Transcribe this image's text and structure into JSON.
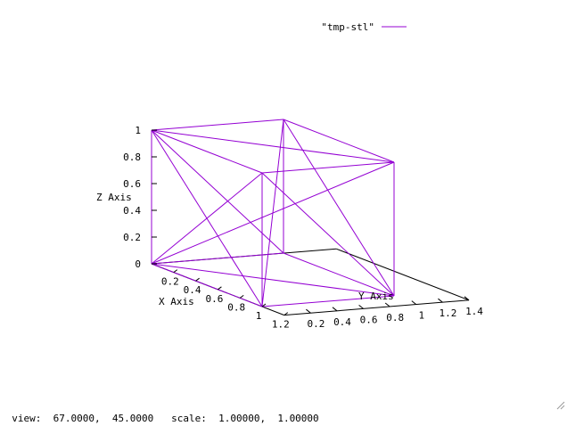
{
  "chart_data": {
    "type": "line",
    "style": "3d-wireframe",
    "view": {
      "rot_x": 67,
      "rot_z": 45,
      "scale": 1,
      "scale_z": 1
    },
    "xlabel": "X Axis",
    "ylabel": "Y Axis",
    "zlabel": "Z Axis",
    "xlim": [
      0,
      1.2
    ],
    "ylim": [
      0,
      1.4
    ],
    "zlim": [
      0,
      1
    ],
    "x_ticks": [
      "0.2",
      "0.4",
      "0.6",
      "0.8",
      "1",
      "1.2"
    ],
    "y_ticks": [
      "0.2",
      "0.4",
      "0.6",
      "0.8",
      "1",
      "1.2",
      "1.4"
    ],
    "z_ticks": [
      "0",
      "0.2",
      "0.4",
      "0.6",
      "0.8",
      "1"
    ],
    "legend": {
      "label": "\"tmp-stl\"",
      "placement": "top-right"
    },
    "series": [
      {
        "name": "\"tmp-stl\"",
        "color": "#9400d3",
        "segments": [
          [
            [
              0,
              0,
              0
            ],
            [
              1,
              0,
              0
            ]
          ],
          [
            [
              1,
              0,
              0
            ],
            [
              1,
              1,
              0
            ]
          ],
          [
            [
              1,
              1,
              0
            ],
            [
              0,
              1,
              0
            ]
          ],
          [
            [
              0,
              1,
              0
            ],
            [
              0,
              0,
              0
            ]
          ],
          [
            [
              0,
              0,
              1
            ],
            [
              1,
              0,
              1
            ]
          ],
          [
            [
              1,
              0,
              1
            ],
            [
              1,
              1,
              1
            ]
          ],
          [
            [
              1,
              1,
              1
            ],
            [
              0,
              1,
              1
            ]
          ],
          [
            [
              0,
              1,
              1
            ],
            [
              0,
              0,
              1
            ]
          ],
          [
            [
              0,
              0,
              0
            ],
            [
              0,
              0,
              1
            ]
          ],
          [
            [
              1,
              0,
              0
            ],
            [
              1,
              0,
              1
            ]
          ],
          [
            [
              1,
              1,
              0
            ],
            [
              1,
              1,
              1
            ]
          ],
          [
            [
              0,
              1,
              0
            ],
            [
              0,
              1,
              1
            ]
          ],
          [
            [
              0,
              0,
              0
            ],
            [
              1,
              1,
              0
            ]
          ],
          [
            [
              0,
              0,
              1
            ],
            [
              1,
              1,
              1
            ]
          ],
          [
            [
              0,
              0,
              1
            ],
            [
              1,
              0,
              0
            ]
          ],
          [
            [
              0,
              1,
              1
            ],
            [
              1,
              1,
              0
            ]
          ],
          [
            [
              0,
              0,
              1
            ],
            [
              0,
              1,
              0
            ]
          ],
          [
            [
              1,
              0,
              1
            ],
            [
              1,
              1,
              0
            ]
          ],
          [
            [
              0,
              0,
              0
            ],
            [
              1,
              1,
              1
            ]
          ],
          [
            [
              1,
              0,
              0
            ],
            [
              0,
              1,
              1
            ]
          ],
          [
            [
              1,
              0,
              1
            ],
            [
              0,
              0,
              0
            ]
          ]
        ]
      }
    ]
  },
  "status": {
    "view_label": "view:",
    "view_values": "67.0000,  45.0000",
    "scale_label": "scale:",
    "scale_values": "1.00000,  1.00000"
  }
}
